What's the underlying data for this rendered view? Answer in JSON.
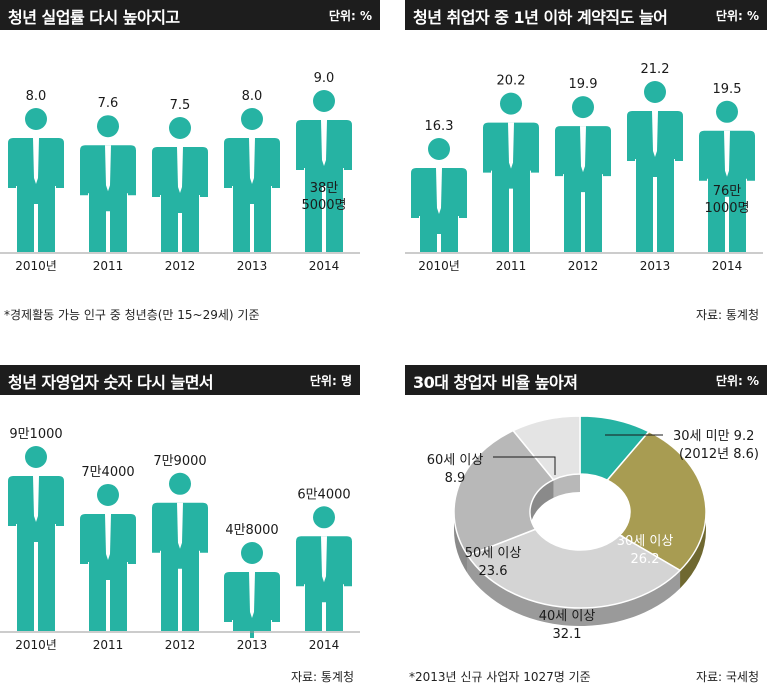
{
  "panels": [
    {
      "title": "청년 실업률 다시 높아지고",
      "unit": "단위: %",
      "note": "*경제활동 가능 인구 중 청년층(만 15~29세) 기준"
    },
    {
      "title": "청년 취업자 중 1년 이하 계약직도 늘어",
      "unit": "단위: %",
      "note": "자료: 통계청"
    },
    {
      "title": "청년 자영업자 숫자 다시 늘면서",
      "unit": "단위: 명",
      "note": "자료: 통계청"
    },
    {
      "title": "30대 창업자 비율 높아져",
      "unit": "단위: %",
      "source": "자료: 국세청",
      "note": "*2013년 신규 사업자 1027명 기준"
    }
  ],
  "colors": {
    "teal": "#26b3a3",
    "olive": "#a89c52",
    "olive_dark": "#6f6830",
    "gray": "#b8b8b8",
    "gray_light": "#d4d4d4",
    "gray_lighter": "#e4e4e4",
    "header": "#1d1d1d"
  },
  "chart_data": [
    {
      "type": "bar",
      "categories": [
        "2010년",
        "2011",
        "2012",
        "2013",
        "2014"
      ],
      "values": [
        8.0,
        7.6,
        7.5,
        8.0,
        9.0
      ],
      "labels": [
        "8.0",
        "7.6",
        "7.5",
        "8.0",
        "9.0"
      ],
      "annotation": {
        "index": 4,
        "lines": [
          "38만",
          "5000명"
        ]
      }
    },
    {
      "type": "bar",
      "categories": [
        "2010년",
        "2011",
        "2012",
        "2013",
        "2014"
      ],
      "values": [
        16.3,
        20.2,
        19.9,
        21.2,
        19.5
      ],
      "labels": [
        "16.3",
        "20.2",
        "19.9",
        "21.2",
        "19.5"
      ],
      "annotation": {
        "index": 4,
        "lines": [
          "76만",
          "1000명"
        ]
      }
    },
    {
      "type": "bar",
      "categories": [
        "2010년",
        "2011",
        "2012",
        "2013",
        "2014"
      ],
      "values": [
        91000,
        74000,
        79000,
        48000,
        64000
      ],
      "labels": [
        "9만1000",
        "7만4000",
        "7만9000",
        "4만8000",
        "6만4000"
      ]
    },
    {
      "type": "pie",
      "slices": [
        {
          "label": "30세 미만",
          "value": 9.2,
          "text": "30세 미만 9.2",
          "text2": "(2012년 8.6)"
        },
        {
          "label": "30세 이상",
          "value": 26.2,
          "text": "30세 이상",
          "text2": "26.2"
        },
        {
          "label": "40세 이상",
          "value": 32.1,
          "text": "40세 이상",
          "text2": "32.1"
        },
        {
          "label": "50세 이상",
          "value": 23.6,
          "text": "50세 이상",
          "text2": "23.6"
        },
        {
          "label": "60세 이상",
          "value": 8.9,
          "text": "60세 이상",
          "text2": "8.9"
        }
      ]
    }
  ]
}
